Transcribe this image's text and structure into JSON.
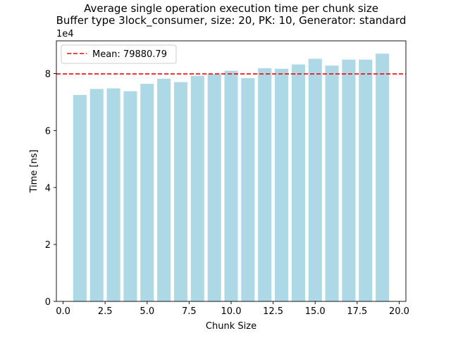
{
  "chart_data": {
    "type": "bar",
    "title": "Average single operation execution time per chunk size",
    "subtitle": "Buffer type 3lock_consumer, size: 20, PK: 10, Generator: standard",
    "xlabel": "Chunk Size",
    "ylabel": "Time [ns]",
    "y_offset_label": "1e4",
    "x": [
      1,
      2,
      3,
      4,
      5,
      6,
      7,
      8,
      9,
      10,
      11,
      12,
      13,
      14,
      15,
      16,
      17,
      18,
      19
    ],
    "values": [
      72500,
      74600,
      74800,
      73800,
      76400,
      78200,
      77000,
      79200,
      79800,
      81000,
      78400,
      81900,
      81700,
      83200,
      85200,
      82800,
      84900,
      84900,
      87000
    ],
    "xlim": [
      -0.4,
      20.4
    ],
    "ylim": [
      0,
      91500
    ],
    "xticks": [
      0.0,
      2.5,
      5.0,
      7.5,
      10.0,
      12.5,
      15.0,
      17.5,
      20.0
    ],
    "xtick_labels": [
      "0.0",
      "2.5",
      "5.0",
      "7.5",
      "10.0",
      "12.5",
      "15.0",
      "17.5",
      "20.0"
    ],
    "yticks": [
      0,
      20000,
      40000,
      60000,
      80000
    ],
    "ytick_labels": [
      "0",
      "2",
      "4",
      "6",
      "8"
    ],
    "mean": 79880.79,
    "legend": {
      "label": "Mean: 79880.79",
      "position": "upper-left"
    },
    "colors": {
      "bar": "#add8e6",
      "mean_line": "#ff0000"
    },
    "grid": false
  }
}
